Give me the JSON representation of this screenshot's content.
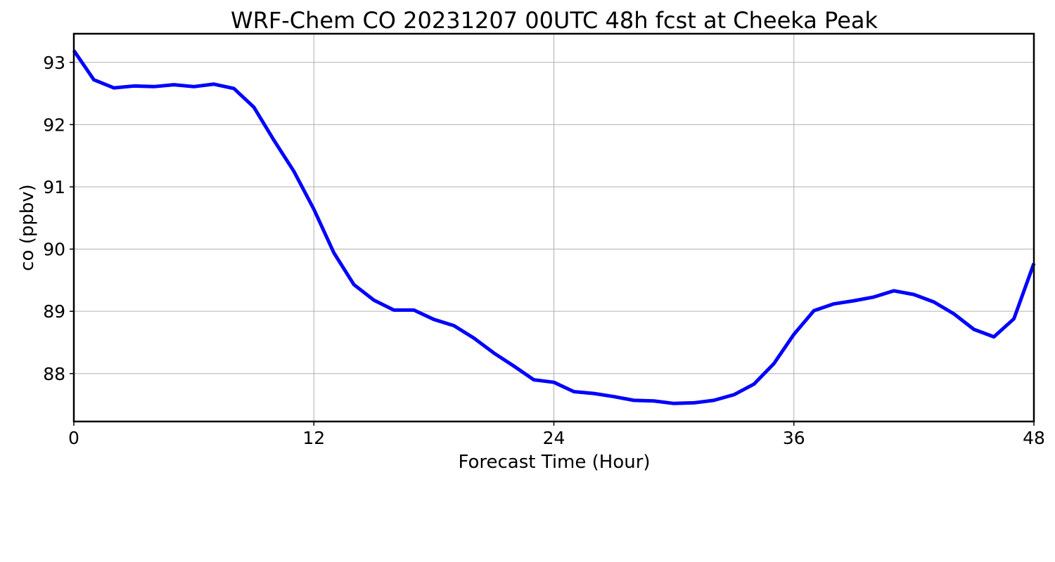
{
  "chart_data": {
    "type": "line",
    "title": "WRF-Chem CO  20231207 00UTC 48h fcst at Cheeka Peak",
    "xlabel": "Forecast Time (Hour)",
    "ylabel": "co  (ppbv)",
    "xlim": [
      0,
      48
    ],
    "ylim": [
      87.23,
      93.46
    ],
    "xticks": [
      0,
      12,
      24,
      36,
      48
    ],
    "yticks": [
      88,
      89,
      90,
      91,
      92,
      93
    ],
    "grid": true,
    "x": [
      0,
      1,
      2,
      3,
      4,
      5,
      6,
      7,
      8,
      9,
      10,
      11,
      12,
      13,
      14,
      15,
      16,
      17,
      18,
      19,
      20,
      21,
      22,
      23,
      24,
      25,
      26,
      27,
      28,
      29,
      30,
      31,
      32,
      33,
      34,
      35,
      36,
      37,
      38,
      39,
      40,
      41,
      42,
      43,
      44,
      45,
      46,
      47,
      48
    ],
    "series": [
      {
        "color": "#0000ff",
        "values": [
          93.19,
          92.72,
          92.59,
          92.62,
          92.61,
          92.64,
          92.61,
          92.65,
          92.58,
          92.28,
          91.75,
          91.25,
          90.64,
          89.94,
          89.43,
          89.18,
          89.02,
          89.02,
          88.87,
          88.77,
          88.57,
          88.33,
          88.12,
          87.9,
          87.86,
          87.71,
          87.68,
          87.63,
          87.57,
          87.56,
          87.52,
          87.53,
          87.57,
          87.66,
          87.83,
          88.16,
          88.63,
          89.01,
          89.12,
          89.17,
          89.23,
          89.33,
          89.27,
          89.15,
          88.96,
          88.71,
          88.59,
          88.88,
          89.77
        ]
      }
    ]
  }
}
